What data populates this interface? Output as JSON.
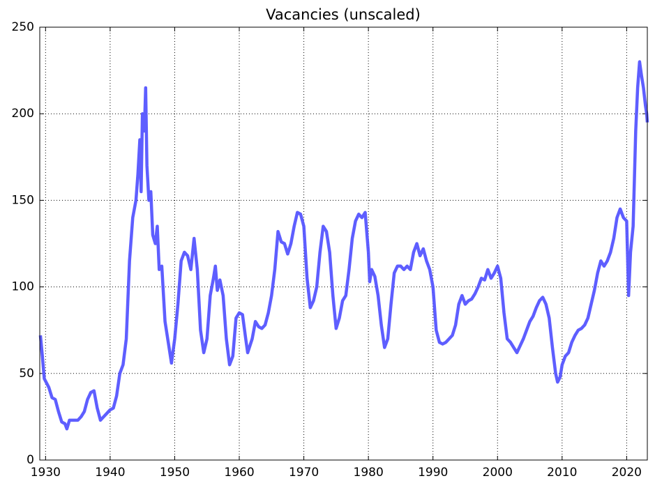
{
  "chart_data": {
    "type": "line",
    "title": "Vacancies (unscaled)",
    "color": "#5555ff",
    "grid": true,
    "xlim": [
      1929.1,
      2023.2
    ],
    "ylim": [
      0,
      250
    ],
    "xticks": [
      1930,
      1940,
      1950,
      1960,
      1970,
      1980,
      1990,
      2000,
      2010,
      2020
    ],
    "yticks": [
      0,
      50,
      100,
      150,
      200,
      250
    ],
    "x": [
      1929.2,
      1929.5,
      1929.8,
      1930.5,
      1931,
      1931.5,
      1932,
      1932.5,
      1933,
      1933.3,
      1933.7,
      1934.5,
      1935,
      1935.5,
      1936,
      1936.5,
      1937,
      1937.5,
      1938,
      1938.5,
      1939,
      1939.5,
      1940,
      1940.5,
      1941,
      1941.5,
      1942,
      1942.5,
      1943,
      1943.5,
      1944,
      1944.3,
      1944.6,
      1944.8,
      1945,
      1945.3,
      1945.5,
      1945.7,
      1946,
      1946.3,
      1946.6,
      1947,
      1947.3,
      1947.6,
      1948,
      1948.5,
      1949,
      1949.5,
      1950,
      1950.5,
      1951,
      1951.5,
      1952,
      1952.5,
      1953,
      1953.5,
      1954,
      1954.5,
      1955,
      1955.5,
      1956,
      1956.3,
      1956.6,
      1957,
      1957.5,
      1958,
      1958.5,
      1959,
      1959.5,
      1960,
      1960.5,
      1961,
      1961.3,
      1962,
      1962.5,
      1963,
      1963.5,
      1964,
      1964.5,
      1965,
      1965.5,
      1966,
      1966.5,
      1967,
      1967.5,
      1968,
      1968.5,
      1969,
      1969.5,
      1970,
      1970.5,
      1971,
      1971.5,
      1972,
      1972.5,
      1973,
      1973.5,
      1974,
      1974.5,
      1975,
      1975.5,
      1976,
      1976.5,
      1977,
      1977.5,
      1978,
      1978.5,
      1979,
      1979.5,
      1980,
      1980.2,
      1980.5,
      1981,
      1981.5,
      1982,
      1982.5,
      1983,
      1983.5,
      1984,
      1984.5,
      1985,
      1985.5,
      1986,
      1986.5,
      1987,
      1987.5,
      1988,
      1988.5,
      1989,
      1989.5,
      1990,
      1990.5,
      1991,
      1991.5,
      1992,
      1992.5,
      1993,
      1993.5,
      1994,
      1994.5,
      1995,
      1995.5,
      1996,
      1996.5,
      1997,
      1997.5,
      1998,
      1998.5,
      1999,
      1999.5,
      2000,
      2000.5,
      2001,
      2001.5,
      2002,
      2002.5,
      2003,
      2003.5,
      2004,
      2004.5,
      2005,
      2005.5,
      2006,
      2006.5,
      2007,
      2007.5,
      2008,
      2008.5,
      2009,
      2009.3,
      2009.7,
      2010,
      2010.5,
      2011,
      2011.5,
      2012,
      2012.5,
      2013,
      2013.5,
      2014,
      2014.5,
      2015,
      2015.5,
      2016,
      2016.5,
      2017,
      2017.5,
      2018,
      2018.5,
      2019,
      2019.5,
      2020,
      2020.3,
      2020.6,
      2021,
      2021.4,
      2021.7,
      2022,
      2022.3,
      2022.6,
      2022.9,
      2023.1,
      2023.2
    ],
    "values": [
      72,
      60,
      47,
      42,
      36,
      35,
      28,
      22,
      21,
      18,
      23,
      23,
      23,
      25,
      28,
      35,
      39,
      40,
      30,
      23,
      25,
      27,
      29,
      30,
      37,
      50,
      55,
      70,
      115,
      140,
      150,
      165,
      185,
      155,
      200,
      190,
      215,
      170,
      150,
      155,
      130,
      125,
      135,
      110,
      112,
      80,
      68,
      56,
      70,
      90,
      115,
      120,
      118,
      110,
      128,
      110,
      75,
      62,
      70,
      95,
      105,
      112,
      98,
      104,
      95,
      70,
      55,
      60,
      82,
      85,
      84,
      70,
      62,
      70,
      80,
      77,
      76,
      78,
      85,
      95,
      110,
      132,
      126,
      125,
      119,
      125,
      135,
      143,
      142,
      135,
      105,
      88,
      92,
      100,
      120,
      135,
      132,
      120,
      95,
      76,
      82,
      92,
      95,
      110,
      128,
      138,
      142,
      140,
      143,
      120,
      103,
      110,
      106,
      95,
      78,
      65,
      70,
      90,
      108,
      112,
      112,
      110,
      112,
      110,
      120,
      125,
      118,
      122,
      115,
      110,
      100,
      75,
      68,
      67,
      68,
      70,
      72,
      78,
      90,
      95,
      90,
      92,
      93,
      96,
      100,
      105,
      104,
      110,
      105,
      108,
      112,
      105,
      85,
      70,
      68,
      65,
      62,
      66,
      70,
      75,
      80,
      83,
      88,
      92,
      94,
      90,
      82,
      65,
      50,
      45,
      48,
      55,
      60,
      62,
      68,
      72,
      75,
      76,
      78,
      82,
      90,
      98,
      108,
      115,
      112,
      115,
      120,
      128,
      140,
      145,
      140,
      138,
      95,
      120,
      135,
      190,
      215,
      230,
      222,
      215,
      205,
      200,
      195
    ]
  }
}
